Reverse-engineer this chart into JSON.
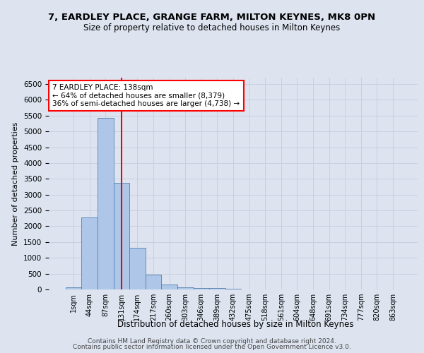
{
  "title_line1": "7, EARDLEY PLACE, GRANGE FARM, MILTON KEYNES, MK8 0PN",
  "title_line2": "Size of property relative to detached houses in Milton Keynes",
  "xlabel": "Distribution of detached houses by size in Milton Keynes",
  "ylabel": "Number of detached properties",
  "footer_line1": "Contains HM Land Registry data © Crown copyright and database right 2024.",
  "footer_line2": "Contains public sector information licensed under the Open Government Licence v3.0.",
  "bar_labels": [
    "1sqm",
    "44sqm",
    "87sqm",
    "131sqm",
    "174sqm",
    "217sqm",
    "260sqm",
    "303sqm",
    "346sqm",
    "389sqm",
    "432sqm",
    "475sqm",
    "518sqm",
    "561sqm",
    "604sqm",
    "648sqm",
    "691sqm",
    "734sqm",
    "777sqm",
    "820sqm",
    "863sqm"
  ],
  "bar_values": [
    70,
    2280,
    5430,
    3380,
    1310,
    480,
    160,
    75,
    55,
    40,
    20,
    10,
    8,
    5,
    3,
    2,
    1,
    1,
    1,
    0,
    0
  ],
  "bar_color": "#aec6e8",
  "bar_edge_color": "#5580b0",
  "vline_x": 3,
  "vline_color": "red",
  "annotation_text": "7 EARDLEY PLACE: 138sqm\n← 64% of detached houses are smaller (8,379)\n36% of semi-detached houses are larger (4,738) →",
  "annotation_box_color": "white",
  "annotation_box_edge_color": "red",
  "ylim": [
    0,
    6700
  ],
  "yticks": [
    0,
    500,
    1000,
    1500,
    2000,
    2500,
    3000,
    3500,
    4000,
    4500,
    5000,
    5500,
    6000,
    6500
  ],
  "grid_color": "#c8d0e0",
  "background_color": "#dde4f0"
}
